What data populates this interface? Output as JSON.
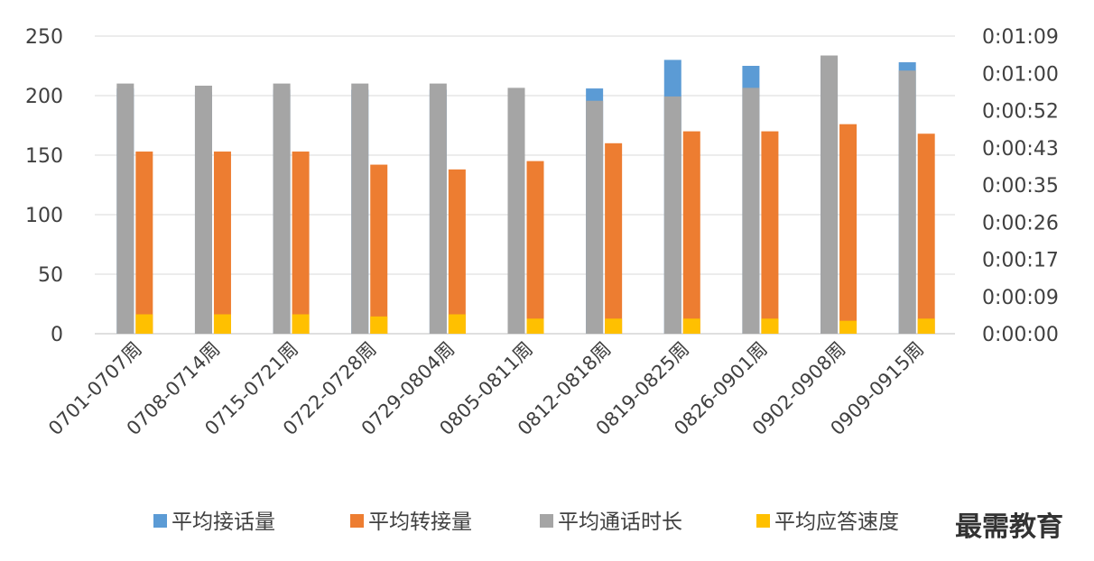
{
  "chart_data": {
    "type": "bar",
    "categories": [
      "0701-0707周",
      "0708-0714周",
      "0715-0721周",
      "0722-0728周",
      "0729-0804周",
      "0805-0811周",
      "0812-0818周",
      "0819-0825周",
      "0826-0901周",
      "0902-0908周",
      "0909-0915周"
    ],
    "series": [
      {
        "name": "平均接话量",
        "color": "#5b9bd5",
        "axis": "left",
        "values": [
          206,
          203,
          205,
          205,
          205,
          202,
          206,
          230,
          225,
          231,
          228
        ]
      },
      {
        "name": "平均转接量",
        "color": "#ed7d31",
        "axis": "left",
        "values": [
          153,
          153,
          153,
          142,
          138,
          145,
          160,
          170,
          170,
          176,
          168
        ]
      },
      {
        "name": "平均通话时长",
        "color": "#a5a5a5",
        "axis": "right",
        "values": [
          58,
          57.5,
          58,
          58,
          58,
          57,
          54,
          55,
          57,
          64.5,
          61
        ]
      },
      {
        "name": "平均应答速度",
        "color": "#ffc000",
        "axis": "right",
        "values": [
          4.5,
          4.5,
          4.5,
          4,
          4.5,
          3.5,
          3.5,
          3.5,
          3.5,
          3,
          3.5
        ]
      }
    ],
    "y_left": {
      "ticks": [
        "0",
        "50",
        "100",
        "150",
        "200",
        "250"
      ],
      "range": [
        0,
        250
      ]
    },
    "y_right": {
      "ticks": [
        "0:00:00",
        "0:00:09",
        "0:00:17",
        "0:00:26",
        "0:00:35",
        "0:00:43",
        "0:00:52",
        "0:01:00",
        "0:01:09"
      ],
      "range_seconds": [
        0,
        69
      ]
    },
    "grid": true,
    "legend_position": "bottom"
  },
  "watermark": "最需教育",
  "colors": {
    "grid": "#d9d9d9",
    "axis": "#bfbfbf",
    "text": "#404040"
  }
}
